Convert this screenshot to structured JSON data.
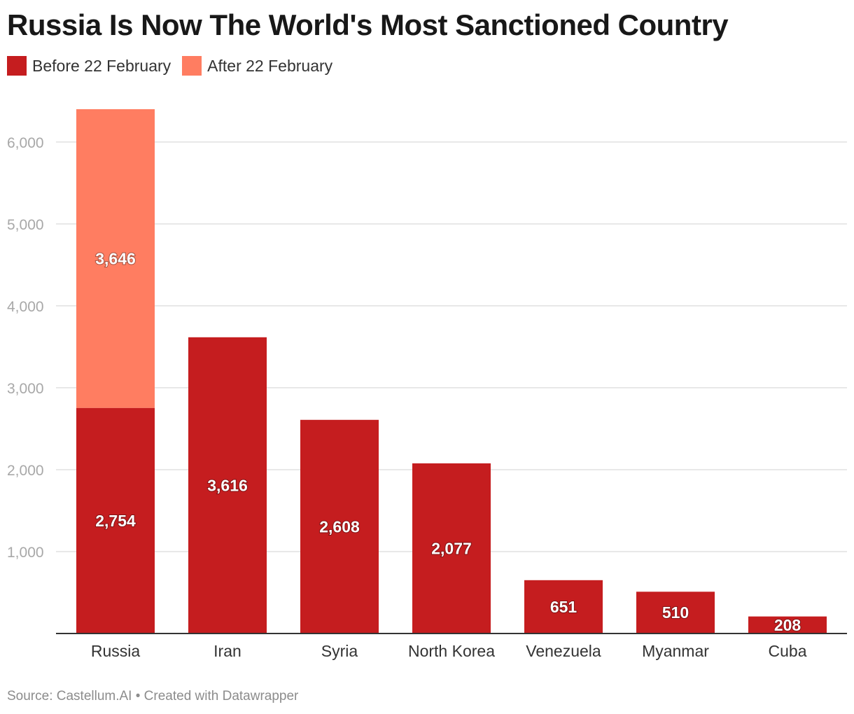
{
  "header": {
    "title": "Russia Is Now The World's Most Sanctioned Country"
  },
  "legend": [
    {
      "label": "Before 22 February",
      "color": "#c51d1f"
    },
    {
      "label": "After 22 February",
      "color": "#ff7d61"
    }
  ],
  "footer": {
    "source": "Source: Castellum.AI • Created with Datawrapper"
  },
  "chart_data": {
    "type": "bar",
    "stacked": true,
    "categories": [
      "Russia",
      "Iran",
      "Syria",
      "North Korea",
      "Venezuela",
      "Myanmar",
      "Cuba"
    ],
    "series": [
      {
        "name": "Before 22 February",
        "color": "#c51d1f",
        "values": [
          2754,
          3616,
          2608,
          2077,
          651,
          510,
          208
        ]
      },
      {
        "name": "After 22 February",
        "color": "#ff7d61",
        "values": [
          3646,
          0,
          0,
          0,
          0,
          0,
          0
        ]
      }
    ],
    "data_labels": [
      [
        "2,754",
        "3,616",
        "2,608",
        "2,077",
        "651",
        "510",
        "208"
      ],
      [
        "3,646",
        "",
        "",
        "",
        "",
        "",
        ""
      ]
    ],
    "yticks": [
      1000,
      2000,
      3000,
      4000,
      5000,
      6000
    ],
    "ytick_labels": [
      "1,000",
      "2,000",
      "3,000",
      "4,000",
      "5,000",
      "6,000"
    ],
    "ylim": [
      0,
      6400
    ],
    "grid": true,
    "legend_position": "top-left"
  }
}
